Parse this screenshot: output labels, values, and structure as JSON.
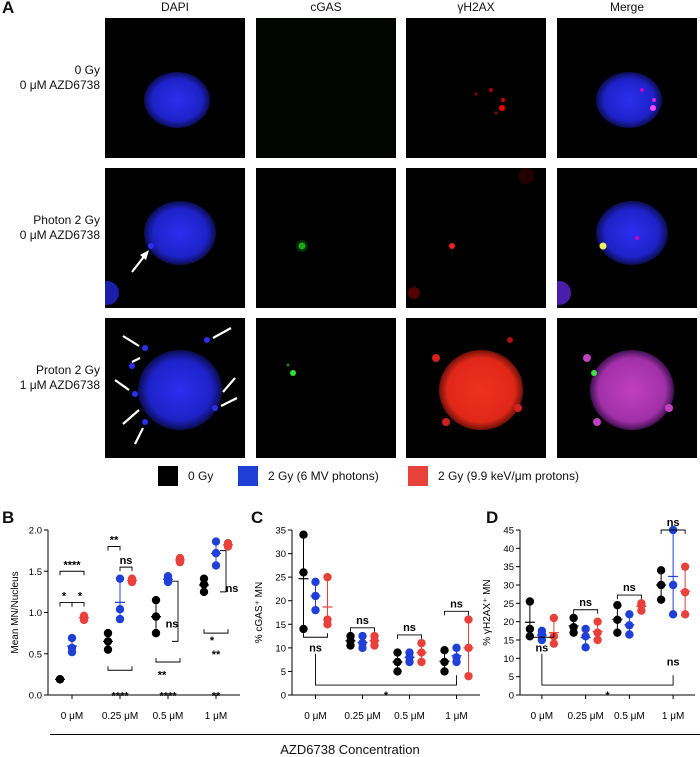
{
  "panelA": {
    "letter": "A",
    "columns": [
      "DAPI",
      "cGAS",
      "γH2AX",
      "Merge"
    ],
    "rows": [
      {
        "line1": "0 Gy",
        "line2": "0 μM AZD6738"
      },
      {
        "line1": "Photon 2 Gy",
        "line2": "0 μM AZD6738"
      },
      {
        "line1": "Proton 2 Gy",
        "line2": "1 μM AZD6738"
      }
    ]
  },
  "legend": [
    {
      "label": "0 Gy",
      "color": "#000000"
    },
    {
      "label": "2 Gy (6 MV photons)",
      "color": "#1f3fd6"
    },
    {
      "label": "2 Gy (9.9 keV/μm protons)",
      "color": "#e8403a"
    }
  ],
  "colors": {
    "ctrl": "#000000",
    "photon": "#1f3fd6",
    "proton": "#e8403a"
  },
  "x_title": "AZD6738 Concentration",
  "chart_data": [
    {
      "letter": "B",
      "type": "scatter",
      "ylabel": "Mean MN/Nucleus",
      "ylim": [
        0,
        2.0
      ],
      "yticks": [
        "0.0",
        "0.5",
        "1.0",
        "1.5",
        "2.0"
      ],
      "categories": [
        "0 μM",
        "0.25 μM",
        "0.5 μM",
        "1 μM"
      ],
      "series": [
        {
          "color": "ctrl",
          "points": [
            [
              0.19,
              0.19,
              0.19
            ],
            [
              0.55,
              0.75,
              0.65
            ],
            [
              1.15,
              0.75,
              0.95
            ],
            [
              1.41,
              1.25,
              1.34
            ]
          ]
        },
        {
          "color": "photon",
          "points": [
            [
              0.52,
              0.57,
              0.69
            ],
            [
              1.41,
              0.92,
              1.04
            ],
            [
              1.44,
              1.4,
              1.37
            ],
            [
              1.86,
              1.72,
              1.57
            ]
          ]
        },
        {
          "color": "proton",
          "points": [
            [
              0.91,
              0.94,
              0.96
            ],
            [
              1.39,
              1.41,
              1.37
            ],
            [
              1.61,
              1.64,
              1.66
            ],
            [
              1.8,
              1.82,
              1.84
            ]
          ]
        }
      ],
      "significance": [
        "****",
        "*",
        "*",
        "**",
        "ns",
        "ns",
        "**",
        "****",
        "**",
        "****",
        "ns",
        "*",
        "**"
      ]
    },
    {
      "letter": "C",
      "type": "scatter",
      "ylabel": "% cGAS⁺ MN",
      "ylim": [
        0,
        35
      ],
      "yticks": [
        "0",
        "5",
        "10",
        "15",
        "20",
        "25",
        "30",
        "35"
      ],
      "categories": [
        "0 μM",
        "0.25 μM",
        "0.5 μM",
        "1 μM"
      ],
      "series": [
        {
          "color": "ctrl",
          "points": [
            [
              34,
              26,
              14
            ],
            [
              12.5,
              11.5,
              10.5
            ],
            [
              9,
              7,
              5
            ],
            [
              9.5,
              7,
              5
            ]
          ]
        },
        {
          "color": "photon",
          "points": [
            [
              24,
              21,
              18
            ],
            [
              12.5,
              11,
              10
            ],
            [
              9,
              8,
              7
            ],
            [
              10,
              8,
              7
            ]
          ]
        },
        {
          "color": "proton",
          "points": [
            [
              25,
              16,
              15
            ],
            [
              12.5,
              11.5,
              10.5
            ],
            [
              11,
              9,
              7
            ],
            [
              16,
              10,
              4
            ]
          ]
        }
      ],
      "significance": [
        "ns",
        "ns",
        "ns",
        "ns",
        "ns",
        "*"
      ]
    },
    {
      "letter": "D",
      "type": "scatter",
      "ylabel": "% γH2AX⁺ MN",
      "ylim": [
        0,
        45
      ],
      "yticks": [
        "0",
        "5",
        "10",
        "15",
        "20",
        "25",
        "30",
        "35",
        "40",
        "45"
      ],
      "categories": [
        "0 μM",
        "0.25 μM",
        "0.5 μM",
        "1 μM"
      ],
      "series": [
        {
          "color": "ctrl",
          "points": [
            [
              25.5,
              18,
              16
            ],
            [
              21,
              18.5,
              17
            ],
            [
              24.5,
              20.5,
              17
            ],
            [
              34,
              30,
              26
            ]
          ]
        },
        {
          "color": "photon",
          "points": [
            [
              17.5,
              16.5,
              15
            ],
            [
              18,
              16,
              13
            ],
            [
              22,
              19,
              16.5
            ],
            [
              45,
              30,
              22
            ]
          ]
        },
        {
          "color": "proton",
          "points": [
            [
              21,
              16,
              14
            ],
            [
              20,
              17,
              15
            ],
            [
              24.5,
              25,
              23
            ],
            [
              35,
              28,
              22
            ]
          ]
        }
      ],
      "significance": [
        "ns",
        "ns",
        "ns",
        "ns",
        "ns",
        "*"
      ]
    }
  ]
}
